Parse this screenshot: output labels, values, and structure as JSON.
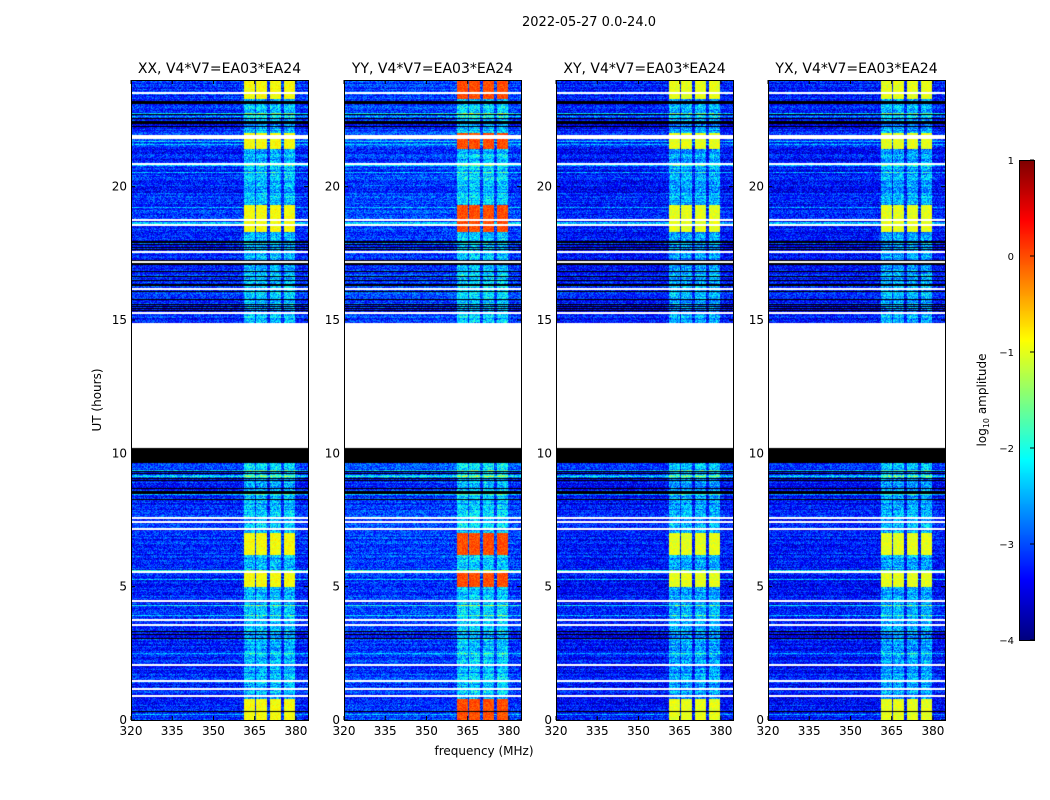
{
  "chart_data": {
    "type": "heatmap",
    "title": "2022-05-27 0.0-24.0",
    "xlabel": "frequency (MHz)",
    "ylabel": "UT (hours)",
    "xlim": [
      320,
      384.4
    ],
    "ylim": [
      0,
      24
    ],
    "xticks": [
      320,
      335,
      350,
      365,
      380
    ],
    "yticks": [
      0,
      5,
      10,
      15,
      20
    ],
    "panels": [
      {
        "title": "XX, V4*V7=EA03*EA24",
        "rfi_peak": -0.8,
        "background": -3.2
      },
      {
        "title": "YY, V4*V7=EA03*EA24",
        "rfi_peak": 0.1,
        "background": -3.1
      },
      {
        "title": "XY, V4*V7=EA03*EA24",
        "rfi_peak": -0.9,
        "background": -3.3
      },
      {
        "title": "YX, V4*V7=EA03*EA24",
        "rfi_peak": -0.9,
        "background": -3.3
      }
    ],
    "colorbar": {
      "label_main": "log",
      "label_sub": "10",
      "label_rest": " amplitude",
      "range": [
        -4,
        1
      ],
      "ticks": [
        -4,
        -3,
        -2,
        -1,
        0,
        1
      ],
      "colormap": "jet"
    },
    "flagged_gap_hours": [
      10.2,
      14.9
    ],
    "blank_band_hours": [
      9.65,
      10.2
    ],
    "rfi_subbands_mhz": [
      [
        361,
        365
      ],
      [
        365.6,
        369.6
      ],
      [
        370.6,
        374.6
      ],
      [
        375.6,
        379.6
      ]
    ],
    "rfi_strong_hours": [
      [
        23.3,
        24
      ],
      [
        21.4,
        22
      ],
      [
        18.3,
        19.3
      ],
      [
        5.0,
        5.6
      ],
      [
        6.2,
        7.0
      ],
      [
        0.0,
        0.8
      ]
    ],
    "white_line_hours": [
      23.55,
      21.95,
      21.85,
      20.9,
      18.8,
      18.6,
      17.6,
      17.2,
      16.2,
      15.3,
      7.6,
      7.45,
      7.2,
      5.6,
      4.5,
      3.8,
      3.6,
      2.1,
      1.5,
      1.2,
      0.95
    ],
    "black_line_regions_hours": [
      [
        22.1,
        23.2
      ],
      [
        15.0,
        18.0
      ],
      [
        7.8,
        9.6
      ],
      [
        3.0,
        3.35
      ],
      [
        0.3,
        0.6
      ]
    ]
  }
}
